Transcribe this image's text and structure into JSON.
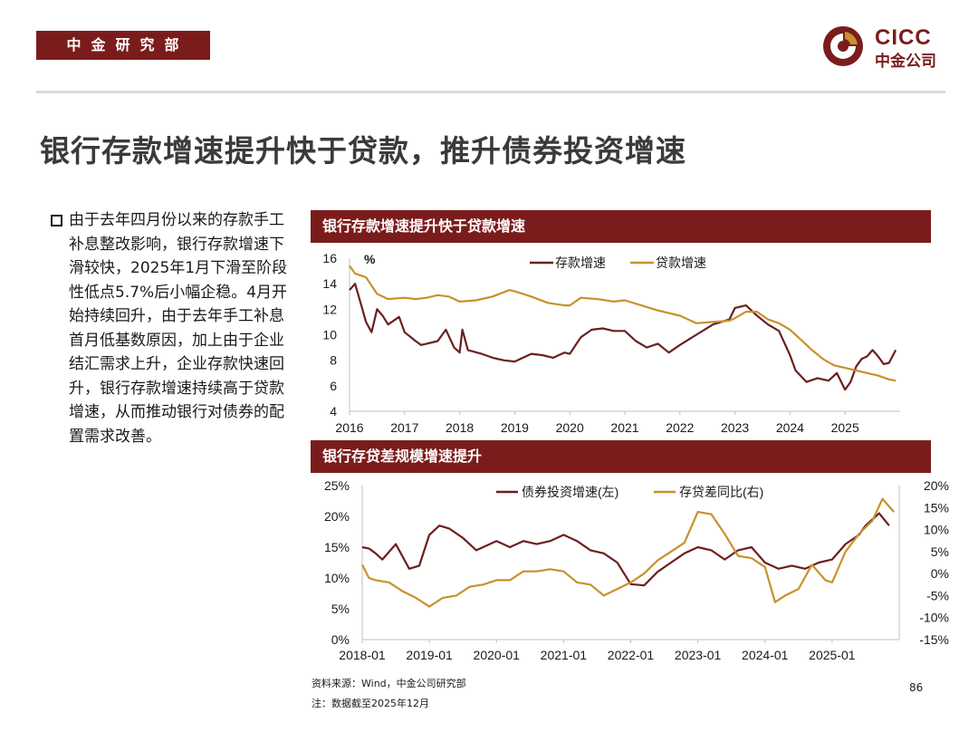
{
  "header": {
    "dept": "中金研究部",
    "logo_en": "CICC",
    "logo_cn": "中金公司"
  },
  "title": "银行存款增速提升快于贷款，推升债券投资增速",
  "bullet": "由于去年四月份以来的存款手工补息整改影响，银行存款增速下滑较快，2025年1月下滑至阶段性低点5.7%后小幅企稳。4月开始持续回升，由于去年手工补息首月低基数原因，加上由于企业结汇需求上升，企业存款快速回升，银行存款增速持续高于贷款增速，从而推动银行对债券的配置需求改善。",
  "colors": {
    "brand": "#7b1c1c",
    "deposit": "#6b1f1f",
    "loan": "#c8912e"
  },
  "footer": {
    "source": "资料来源：Wind，中金公司研究部",
    "note": "注：数据截至2025年12月",
    "page": "86"
  },
  "chart_data": [
    {
      "type": "line",
      "title": "银行存款增速提升快于贷款增速",
      "unit_label": "%",
      "ylim": [
        4,
        16
      ],
      "yticks": [
        "16",
        "14",
        "12",
        "10",
        "8",
        "6",
        "4"
      ],
      "xlim": [
        2016,
        2026
      ],
      "xticks": [
        "2016",
        "2017",
        "2018",
        "2019",
        "2020",
        "2021",
        "2022",
        "2023",
        "2024",
        "2025"
      ],
      "legend_position": "top",
      "series": [
        {
          "name": "存款增速",
          "color": "#6b1f1f",
          "x": [
            2016,
            2016.1,
            2016.2,
            2016.3,
            2016.4,
            2016.5,
            2016.6,
            2016.7,
            2016.9,
            2017,
            2017.2,
            2017.3,
            2017.4,
            2017.6,
            2017.75,
            2017.9,
            2018,
            2018.05,
            2018.15,
            2018.4,
            2018.6,
            2018.8,
            2019,
            2019.3,
            2019.5,
            2019.7,
            2019.9,
            2020,
            2020.2,
            2020.4,
            2020.6,
            2020.8,
            2021,
            2021.2,
            2021.4,
            2021.6,
            2021.8,
            2022,
            2022.3,
            2022.6,
            2022.9,
            2023,
            2023.2,
            2023.4,
            2023.6,
            2023.8,
            2024,
            2024.1,
            2024.3,
            2024.5,
            2024.7,
            2024.85,
            2025,
            2025.1,
            2025.2,
            2025.3,
            2025.4,
            2025.5,
            2025.6,
            2025.7,
            2025.8,
            2025.92
          ],
          "values": [
            13.5,
            14,
            12.5,
            11,
            10.2,
            12,
            11.5,
            10.8,
            11.4,
            10.2,
            9.5,
            9.2,
            9.3,
            9.5,
            10.4,
            9.0,
            8.6,
            10.4,
            8.8,
            8.5,
            8.2,
            8.0,
            7.9,
            8.5,
            8.4,
            8.2,
            8.6,
            8.5,
            9.8,
            10.4,
            10.5,
            10.3,
            10.3,
            9.5,
            9.0,
            9.3,
            8.6,
            9.2,
            10.0,
            10.8,
            11.2,
            12.1,
            12.3,
            11.5,
            10.8,
            10.3,
            8.4,
            7.2,
            6.3,
            6.6,
            6.4,
            7.0,
            5.7,
            6.3,
            7.5,
            8.1,
            8.3,
            8.8,
            8.3,
            7.7,
            7.8,
            8.8
          ]
        },
        {
          "name": "贷款增速",
          "color": "#c8912e",
          "x": [
            2016,
            2016.1,
            2016.3,
            2016.5,
            2016.7,
            2017,
            2017.2,
            2017.4,
            2017.6,
            2017.8,
            2018,
            2018.3,
            2018.6,
            2018.9,
            2019,
            2019.3,
            2019.6,
            2019.9,
            2020,
            2020.2,
            2020.5,
            2020.8,
            2021,
            2021.3,
            2021.6,
            2021.9,
            2022,
            2022.3,
            2022.6,
            2022.9,
            2023,
            2023.2,
            2023.4,
            2023.6,
            2023.8,
            2024,
            2024.2,
            2024.4,
            2024.6,
            2024.8,
            2025,
            2025.2,
            2025.4,
            2025.6,
            2025.8,
            2025.92
          ],
          "values": [
            15.4,
            14.8,
            14.5,
            13.2,
            12.8,
            12.9,
            12.8,
            12.9,
            13.1,
            13.0,
            12.6,
            12.7,
            13.0,
            13.5,
            13.4,
            13.0,
            12.5,
            12.3,
            12.3,
            12.9,
            12.8,
            12.6,
            12.7,
            12.3,
            11.9,
            11.6,
            11.5,
            10.9,
            11.0,
            11.1,
            11.3,
            11.8,
            11.8,
            11.2,
            10.9,
            10.4,
            9.6,
            8.8,
            8.1,
            7.6,
            7.4,
            7.2,
            7.0,
            6.8,
            6.5,
            6.4
          ]
        }
      ]
    },
    {
      "type": "line",
      "title": "银行存贷差规模增速提升",
      "ylim_left": [
        0,
        25
      ],
      "yticks_left": [
        "25%",
        "20%",
        "15%",
        "10%",
        "5%",
        "0%"
      ],
      "ylim_right": [
        -15,
        20
      ],
      "yticks_right": [
        "20%",
        "15%",
        "10%",
        "5%",
        "0%",
        "-5%",
        "-10%",
        "-15%"
      ],
      "xlim": [
        2018,
        2026
      ],
      "xticks": [
        "2018-01",
        "2019-01",
        "2020-01",
        "2021-01",
        "2022-01",
        "2023-01",
        "2024-01",
        "2025-01"
      ],
      "legend_position": "top",
      "series": [
        {
          "name": "债券投资增速(左)",
          "axis": "left",
          "color": "#6b1f1f",
          "x": [
            2018,
            2018.1,
            2018.2,
            2018.3,
            2018.5,
            2018.7,
            2018.85,
            2019,
            2019.15,
            2019.3,
            2019.5,
            2019.7,
            2019.9,
            2020,
            2020.2,
            2020.4,
            2020.6,
            2020.8,
            2021,
            2021.2,
            2021.4,
            2021.6,
            2021.8,
            2022,
            2022.2,
            2022.4,
            2022.6,
            2022.8,
            2023,
            2023.2,
            2023.4,
            2023.6,
            2023.8,
            2024,
            2024.2,
            2024.4,
            2024.6,
            2024.8,
            2025,
            2025.2,
            2025.4,
            2025.5,
            2025.7,
            2025.85
          ],
          "values": [
            15.0,
            14.8,
            14.0,
            13.0,
            15.5,
            11.5,
            12.0,
            17.0,
            18.5,
            18.0,
            16.5,
            14.5,
            15.5,
            16.0,
            15.0,
            16.0,
            15.5,
            16.0,
            17.0,
            16.0,
            14.5,
            14.0,
            12.5,
            9.0,
            8.8,
            11.0,
            12.5,
            14.0,
            15.0,
            14.5,
            13.0,
            14.5,
            15.0,
            12.5,
            11.5,
            12.0,
            11.5,
            12.5,
            13.0,
            15.5,
            17.0,
            18.5,
            20.5,
            18.5
          ]
        },
        {
          "name": "存贷差同比(右)",
          "axis": "right",
          "color": "#c8912e",
          "x": [
            2018,
            2018.1,
            2018.2,
            2018.4,
            2018.6,
            2018.8,
            2019,
            2019.2,
            2019.4,
            2019.6,
            2019.8,
            2020,
            2020.2,
            2020.4,
            2020.6,
            2020.8,
            2021,
            2021.2,
            2021.4,
            2021.6,
            2021.8,
            2022,
            2022.2,
            2022.4,
            2022.6,
            2022.8,
            2023,
            2023.2,
            2023.4,
            2023.6,
            2023.8,
            2024,
            2024.15,
            2024.3,
            2024.5,
            2024.7,
            2024.9,
            2025,
            2025.2,
            2025.4,
            2025.6,
            2025.75,
            2025.92
          ],
          "values": [
            2.0,
            -1.0,
            -1.5,
            -2.0,
            -4.0,
            -5.5,
            -7.5,
            -5.5,
            -5.0,
            -3.0,
            -2.5,
            -1.5,
            -1.5,
            0.5,
            0.5,
            1.0,
            0.5,
            -2.0,
            -2.5,
            -5.0,
            -3.5,
            -2.0,
            0.0,
            3.0,
            5.0,
            7.0,
            14.0,
            13.5,
            9.0,
            4.0,
            3.5,
            1.5,
            -6.5,
            -5.0,
            -3.5,
            2.0,
            -1.5,
            -2.0,
            5.0,
            9.0,
            12.0,
            17.0,
            14.0
          ]
        }
      ]
    }
  ]
}
